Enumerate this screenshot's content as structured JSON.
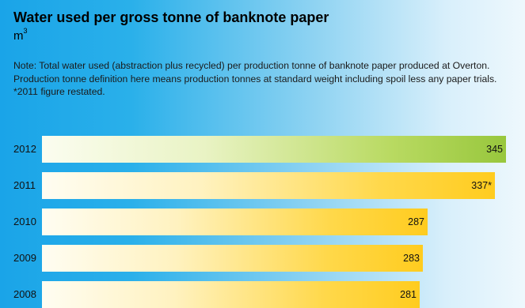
{
  "title": "Water used per gross tonne of banknote paper",
  "unit_base": "m",
  "unit_exp": "3",
  "note": "Note: Total water used (abstraction plus recycled) per production tonne of banknote paper produced at Overton. Production tonne definition here means production tonnes at standard weight including spoil less any paper trials. *2011 figure restated.",
  "chart_data": {
    "type": "bar",
    "orientation": "horizontal",
    "categories": [
      "2012",
      "2011",
      "2010",
      "2009",
      "2008"
    ],
    "values": [
      345,
      337,
      287,
      283,
      281
    ],
    "value_labels": [
      "345",
      "337*",
      "287",
      "283",
      "281"
    ],
    "highlight_category": "2012",
    "colors": {
      "highlight": "#98c73d",
      "default": "#ffcc1f"
    }
  }
}
